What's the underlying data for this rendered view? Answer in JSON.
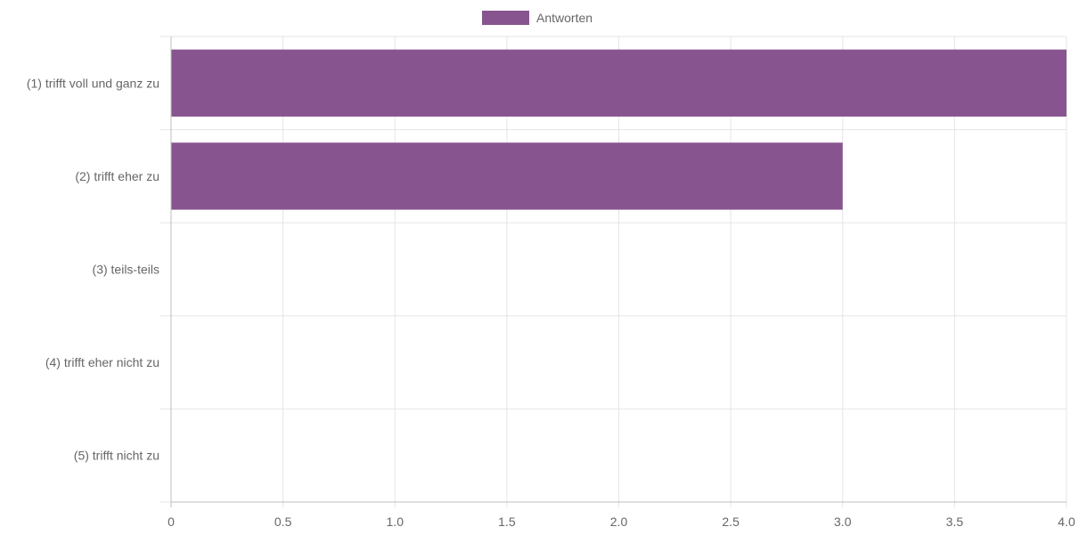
{
  "chart_data": {
    "type": "bar",
    "orientation": "horizontal",
    "categories": [
      "(1) trifft voll und ganz zu",
      "(2) trifft eher zu",
      "(3) teils-teils",
      "(4) trifft eher nicht zu",
      "(5) trifft nicht zu"
    ],
    "series": [
      {
        "name": "Antworten",
        "values": [
          4,
          3,
          0,
          0,
          0
        ],
        "color": "#87548F"
      }
    ],
    "xlim": [
      0,
      4
    ],
    "x_ticks": [
      "0",
      "0.5",
      "1.0",
      "1.5",
      "2.0",
      "2.5",
      "3.0",
      "3.5",
      "4.0"
    ],
    "grid": true,
    "legend_position": "top-center",
    "colors": {
      "grid": "#e5e5e5",
      "axis": "#bdbdbd",
      "text": "#666666"
    }
  }
}
